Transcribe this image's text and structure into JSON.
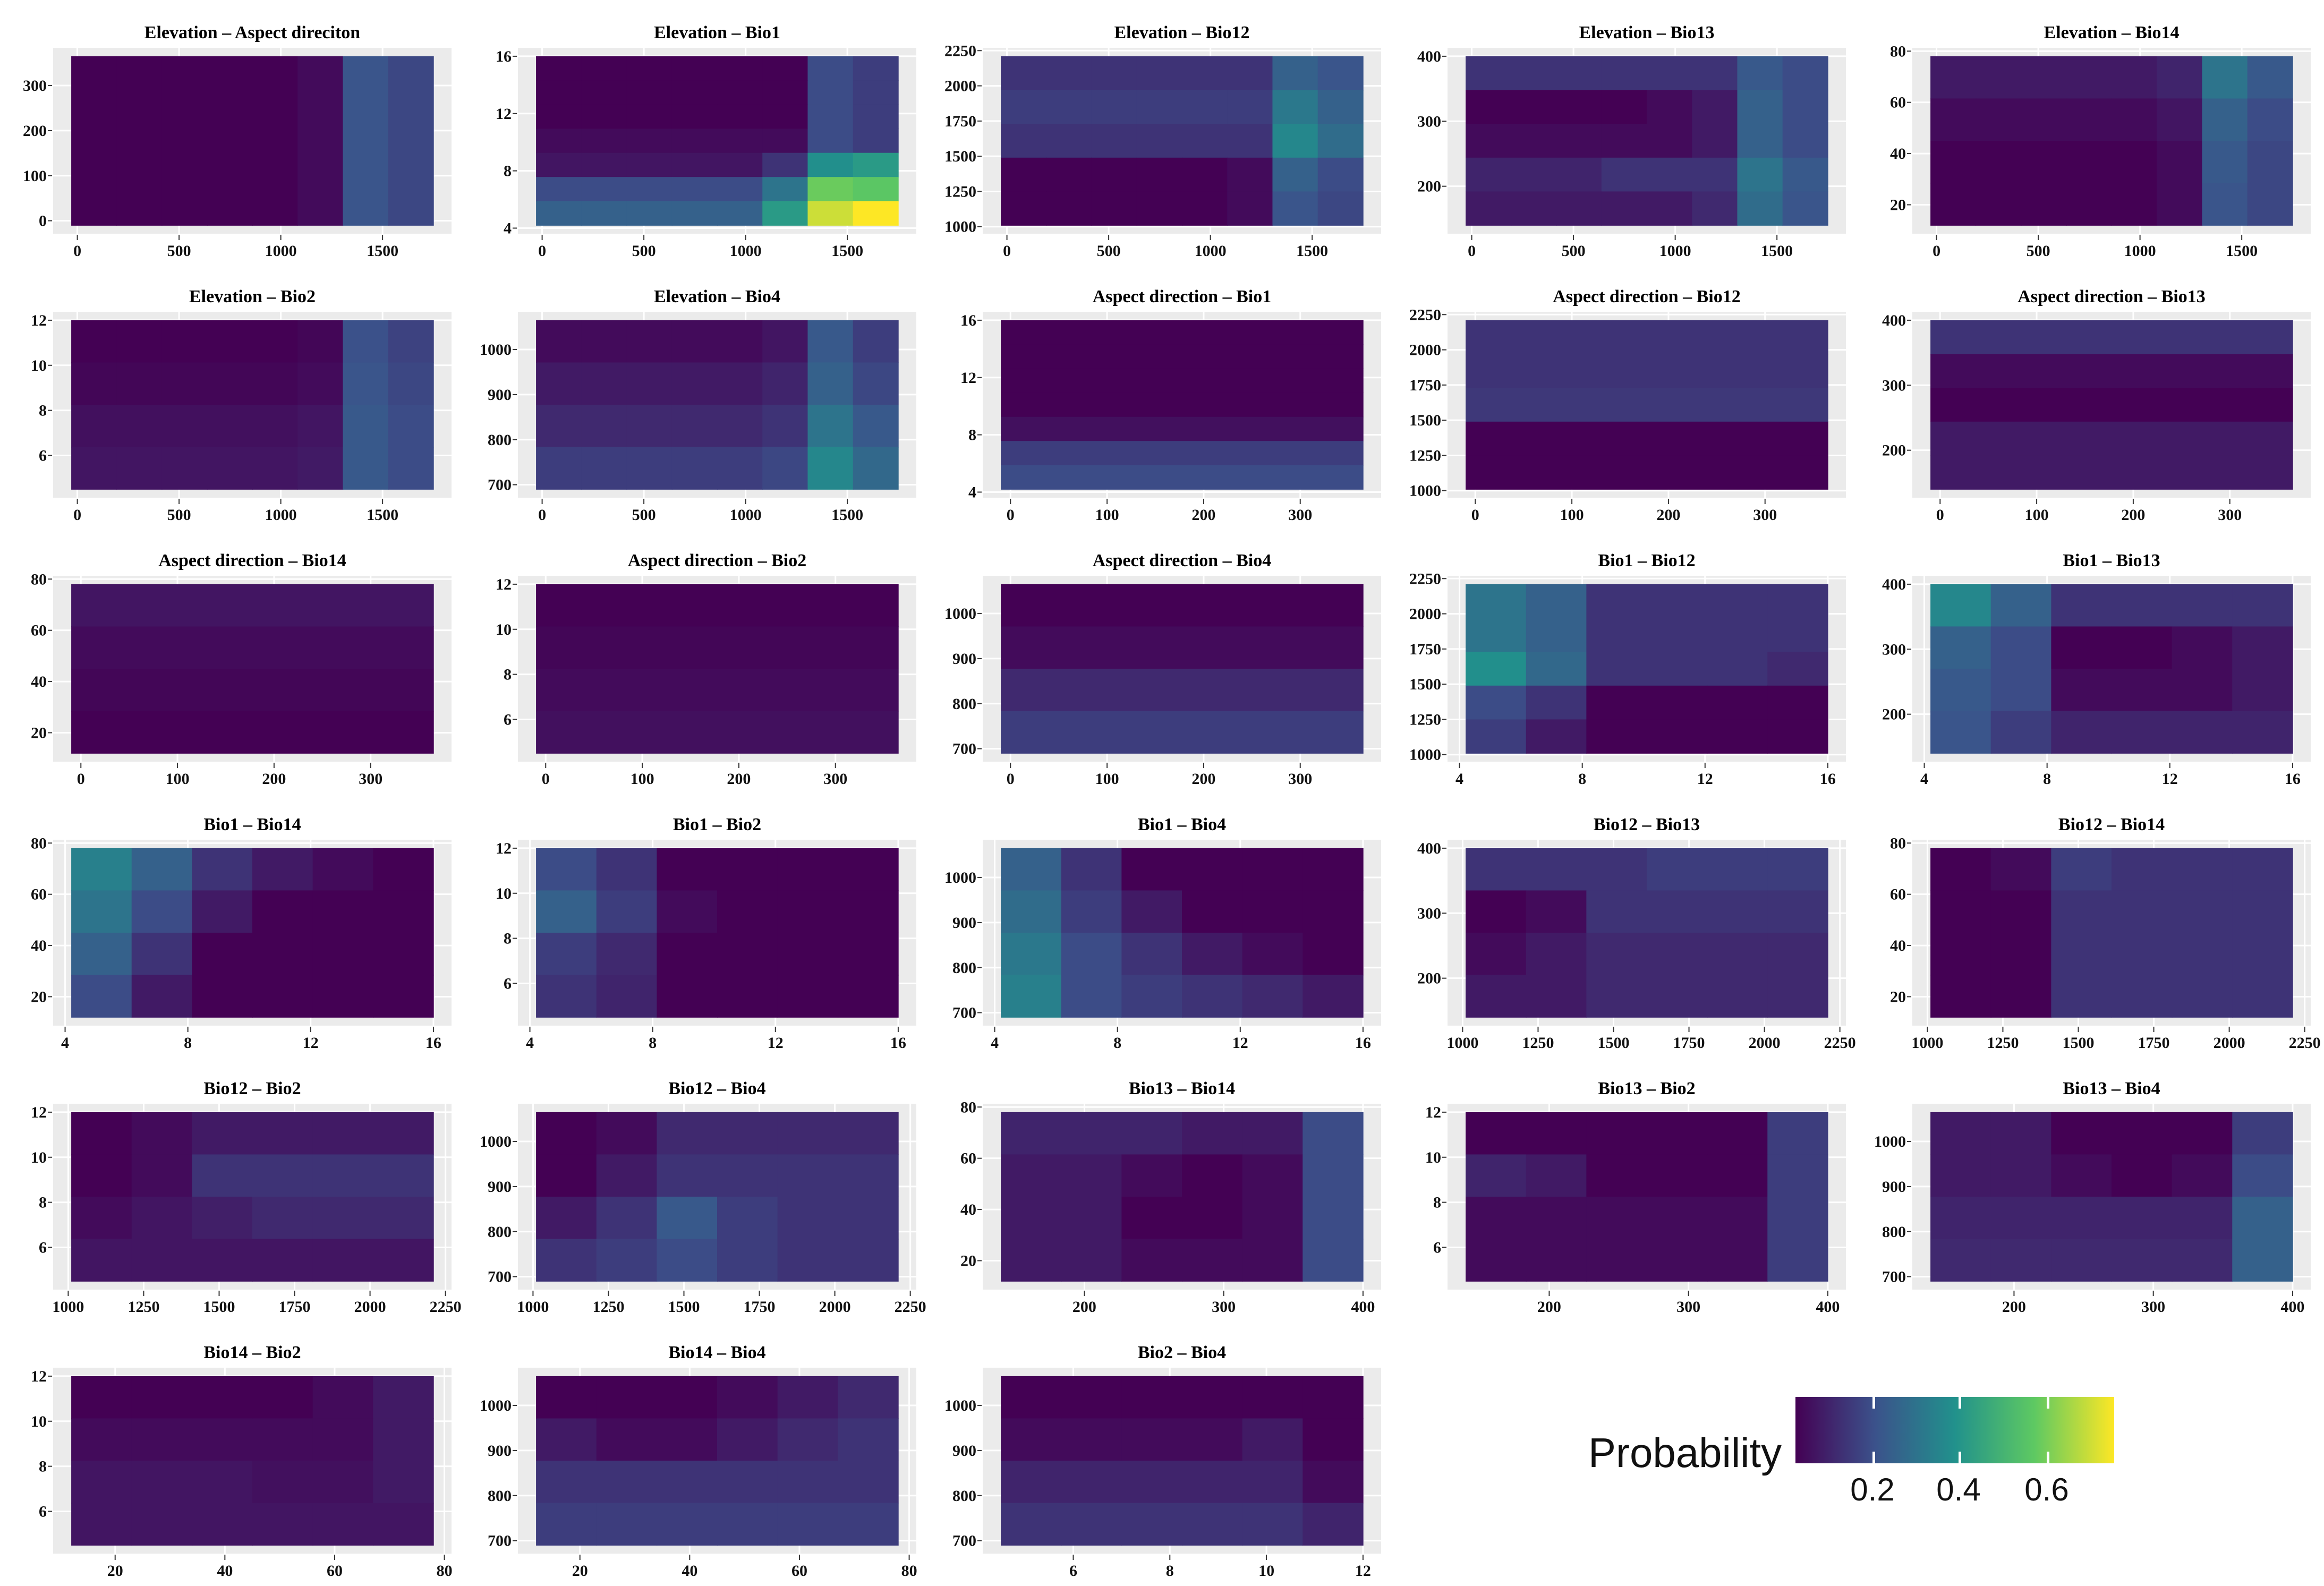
{
  "chart_data": {
    "type": "heatmap",
    "title": "",
    "legend": {
      "title": "Probability",
      "ticks": [
        "0.2",
        "0.4",
        "0.6"
      ],
      "range": [
        0.1,
        0.75
      ],
      "placement": "bottom-right",
      "colormap": [
        "#440154",
        "#3b528b",
        "#21918c",
        "#5ec962",
        "#fde725"
      ]
    },
    "variables": {
      "Elevation": {
        "range": [
          -30,
          1750
        ],
        "ticks": [
          0,
          500,
          1000,
          1500
        ]
      },
      "Aspect": {
        "range": [
          -10,
          365
        ],
        "ticks": [
          0,
          100,
          200,
          300
        ]
      },
      "Bio1": {
        "range": [
          4.2,
          16
        ],
        "ticks": [
          4,
          8,
          12,
          16
        ]
      },
      "Bio12": {
        "range": [
          1010,
          2210
        ],
        "ticks": [
          1000,
          1250,
          1500,
          1750,
          2000,
          2250
        ]
      },
      "Bio13": {
        "range": [
          140,
          400
        ],
        "ticks": [
          200,
          300,
          400
        ]
      },
      "Bio14": {
        "range": [
          12,
          78
        ],
        "ticks": [
          20,
          40,
          60,
          80
        ]
      },
      "Bio2": {
        "range": [
          4.5,
          12
        ],
        "ticks": [
          6,
          8,
          10,
          12
        ]
      },
      "Bio4": {
        "range": [
          690,
          1065
        ],
        "ticks": [
          700,
          800,
          900,
          1000
        ]
      }
    },
    "panels": [
      {
        "title": "Elevation – Aspect direciton",
        "x": "Elevation",
        "y": "Aspect",
        "z": [
          [
            0.1,
            0.1,
            0.1,
            0.1,
            0.1,
            0.12,
            0.27,
            0.24
          ]
        ]
      },
      {
        "title": "Elevation – Bio1",
        "x": "Elevation",
        "y": "Bio1",
        "z": [
          [
            0.1,
            0.1,
            0.1,
            0.1,
            0.1,
            0.1,
            0.25,
            0.22
          ],
          [
            0.1,
            0.1,
            0.1,
            0.1,
            0.1,
            0.1,
            0.25,
            0.22
          ],
          [
            0.1,
            0.1,
            0.1,
            0.1,
            0.1,
            0.1,
            0.25,
            0.22
          ],
          [
            0.12,
            0.12,
            0.12,
            0.12,
            0.12,
            0.12,
            0.25,
            0.22
          ],
          [
            0.14,
            0.14,
            0.14,
            0.14,
            0.14,
            0.2,
            0.42,
            0.45
          ],
          [
            0.25,
            0.25,
            0.25,
            0.25,
            0.25,
            0.35,
            0.6,
            0.58
          ],
          [
            0.3,
            0.3,
            0.3,
            0.3,
            0.3,
            0.45,
            0.7,
            0.75
          ]
        ]
      },
      {
        "title": "Elevation – Bio12",
        "x": "Elevation",
        "y": "Bio12",
        "z": [
          [
            0.2,
            0.2,
            0.2,
            0.2,
            0.2,
            0.2,
            0.3,
            0.27
          ],
          [
            0.22,
            0.22,
            0.22,
            0.22,
            0.22,
            0.22,
            0.36,
            0.3
          ],
          [
            0.2,
            0.2,
            0.2,
            0.2,
            0.2,
            0.2,
            0.4,
            0.33
          ],
          [
            0.1,
            0.1,
            0.1,
            0.1,
            0.1,
            0.12,
            0.3,
            0.25
          ],
          [
            0.1,
            0.1,
            0.1,
            0.1,
            0.1,
            0.12,
            0.27,
            0.24
          ]
        ]
      },
      {
        "title": "Elevation – Bio13",
        "x": "Elevation",
        "y": "Bio13",
        "z": [
          [
            0.2,
            0.2,
            0.2,
            0.2,
            0.2,
            0.2,
            0.28,
            0.25
          ],
          [
            0.1,
            0.1,
            0.1,
            0.1,
            0.12,
            0.15,
            0.3,
            0.25
          ],
          [
            0.12,
            0.12,
            0.12,
            0.12,
            0.12,
            0.15,
            0.3,
            0.25
          ],
          [
            0.17,
            0.17,
            0.17,
            0.2,
            0.2,
            0.2,
            0.35,
            0.28
          ],
          [
            0.15,
            0.15,
            0.15,
            0.15,
            0.15,
            0.18,
            0.33,
            0.27
          ]
        ]
      },
      {
        "title": "Elevation – Bio14",
        "x": "Elevation",
        "y": "Bio14",
        "z": [
          [
            0.15,
            0.15,
            0.15,
            0.15,
            0.15,
            0.17,
            0.35,
            0.28
          ],
          [
            0.12,
            0.12,
            0.12,
            0.12,
            0.12,
            0.14,
            0.3,
            0.25
          ],
          [
            0.1,
            0.1,
            0.1,
            0.1,
            0.1,
            0.12,
            0.28,
            0.24
          ],
          [
            0.1,
            0.1,
            0.1,
            0.1,
            0.1,
            0.12,
            0.27,
            0.24
          ]
        ]
      },
      {
        "title": "Elevation – Bio2",
        "x": "Elevation",
        "y": "Bio2",
        "z": [
          [
            0.1,
            0.1,
            0.1,
            0.1,
            0.1,
            0.11,
            0.26,
            0.23
          ],
          [
            0.11,
            0.11,
            0.11,
            0.11,
            0.11,
            0.12,
            0.27,
            0.24
          ],
          [
            0.13,
            0.13,
            0.13,
            0.13,
            0.13,
            0.14,
            0.28,
            0.25
          ],
          [
            0.14,
            0.14,
            0.14,
            0.14,
            0.14,
            0.15,
            0.28,
            0.25
          ]
        ]
      },
      {
        "title": "Elevation – Bio4",
        "x": "Elevation",
        "y": "Bio4",
        "z": [
          [
            0.12,
            0.12,
            0.12,
            0.12,
            0.12,
            0.14,
            0.28,
            0.22
          ],
          [
            0.15,
            0.15,
            0.15,
            0.15,
            0.15,
            0.17,
            0.3,
            0.24
          ],
          [
            0.18,
            0.18,
            0.18,
            0.18,
            0.18,
            0.2,
            0.35,
            0.28
          ],
          [
            0.22,
            0.22,
            0.22,
            0.22,
            0.22,
            0.24,
            0.4,
            0.32
          ]
        ]
      },
      {
        "title": "Aspect direction – Bio1",
        "x": "Aspect",
        "y": "Bio1",
        "z": [
          [
            0.1
          ],
          [
            0.1
          ],
          [
            0.1
          ],
          [
            0.1
          ],
          [
            0.13
          ],
          [
            0.22
          ],
          [
            0.25
          ]
        ]
      },
      {
        "title": "Aspect direction – Bio12",
        "x": "Aspect",
        "y": "Bio12",
        "z": [
          [
            0.2
          ],
          [
            0.2
          ],
          [
            0.21
          ],
          [
            0.1
          ],
          [
            0.1
          ]
        ]
      },
      {
        "title": "Aspect direction – Bio13",
        "x": "Aspect",
        "y": "Bio13",
        "z": [
          [
            0.2
          ],
          [
            0.12
          ],
          [
            0.1
          ],
          [
            0.15
          ],
          [
            0.15
          ]
        ]
      },
      {
        "title": "Aspect direction – Bio14",
        "x": "Aspect",
        "y": "Bio14",
        "z": [
          [
            0.14
          ],
          [
            0.12
          ],
          [
            0.11
          ],
          [
            0.1
          ]
        ]
      },
      {
        "title": "Aspect direction – Bio2",
        "x": "Aspect",
        "y": "Bio2",
        "z": [
          [
            0.1
          ],
          [
            0.11
          ],
          [
            0.12
          ],
          [
            0.13
          ]
        ]
      },
      {
        "title": "Aspect direction – Bio4",
        "x": "Aspect",
        "y": "Bio4",
        "z": [
          [
            0.1
          ],
          [
            0.12
          ],
          [
            0.18
          ],
          [
            0.22
          ]
        ]
      },
      {
        "title": "Bio1 – Bio12",
        "x": "Bio1",
        "y": "Bio12",
        "z": [
          [
            0.35,
            0.3,
            0.2,
            0.2,
            0.2,
            0.2
          ],
          [
            0.35,
            0.3,
            0.2,
            0.2,
            0.2,
            0.2
          ],
          [
            0.42,
            0.32,
            0.2,
            0.2,
            0.2,
            0.18
          ],
          [
            0.25,
            0.2,
            0.1,
            0.1,
            0.1,
            0.1
          ],
          [
            0.22,
            0.15,
            0.1,
            0.1,
            0.1,
            0.1
          ]
        ]
      },
      {
        "title": "Bio1 – Bio13",
        "x": "Bio1",
        "y": "Bio13",
        "z": [
          [
            0.4,
            0.3,
            0.2,
            0.2,
            0.2,
            0.2
          ],
          [
            0.3,
            0.25,
            0.1,
            0.1,
            0.12,
            0.15
          ],
          [
            0.28,
            0.25,
            0.12,
            0.12,
            0.12,
            0.15
          ],
          [
            0.27,
            0.22,
            0.17,
            0.17,
            0.17,
            0.17
          ]
        ]
      },
      {
        "title": "Bio1 – Bio14",
        "x": "Bio1",
        "y": "Bio14",
        "z": [
          [
            0.38,
            0.3,
            0.2,
            0.15,
            0.12,
            0.1
          ],
          [
            0.35,
            0.25,
            0.15,
            0.1,
            0.1,
            0.1
          ],
          [
            0.3,
            0.2,
            0.1,
            0.1,
            0.1,
            0.1
          ],
          [
            0.25,
            0.15,
            0.1,
            0.1,
            0.1,
            0.1
          ]
        ]
      },
      {
        "title": "Bio1 – Bio2",
        "x": "Bio1",
        "y": "Bio2",
        "z": [
          [
            0.25,
            0.2,
            0.1,
            0.1,
            0.1,
            0.1
          ],
          [
            0.3,
            0.22,
            0.12,
            0.1,
            0.1,
            0.1
          ],
          [
            0.22,
            0.18,
            0.1,
            0.1,
            0.1,
            0.1
          ],
          [
            0.2,
            0.17,
            0.1,
            0.1,
            0.1,
            0.1
          ]
        ]
      },
      {
        "title": "Bio1 – Bio4",
        "x": "Bio1",
        "y": "Bio4",
        "z": [
          [
            0.3,
            0.2,
            0.1,
            0.1,
            0.1,
            0.1
          ],
          [
            0.33,
            0.22,
            0.15,
            0.1,
            0.1,
            0.1
          ],
          [
            0.36,
            0.25,
            0.2,
            0.15,
            0.12,
            0.1
          ],
          [
            0.38,
            0.25,
            0.22,
            0.2,
            0.18,
            0.15
          ]
        ]
      },
      {
        "title": "Bio12 – Bio13",
        "x": "Bio12",
        "y": "Bio13",
        "z": [
          [
            0.2,
            0.2,
            0.2,
            0.22,
            0.22,
            0.22
          ],
          [
            0.1,
            0.12,
            0.2,
            0.2,
            0.2,
            0.2
          ],
          [
            0.12,
            0.15,
            0.18,
            0.18,
            0.18,
            0.18
          ],
          [
            0.15,
            0.15,
            0.18,
            0.18,
            0.18,
            0.18
          ]
        ]
      },
      {
        "title": "Bio12 – Bio14",
        "x": "Bio12",
        "y": "Bio14",
        "z": [
          [
            0.1,
            0.12,
            0.22,
            0.2,
            0.2,
            0.2
          ],
          [
            0.1,
            0.1,
            0.2,
            0.2,
            0.2,
            0.2
          ],
          [
            0.1,
            0.1,
            0.2,
            0.2,
            0.2,
            0.2
          ],
          [
            0.1,
            0.1,
            0.2,
            0.2,
            0.2,
            0.2
          ]
        ]
      },
      {
        "title": "Bio12 – Bio2",
        "x": "Bio12",
        "y": "Bio2",
        "z": [
          [
            0.1,
            0.12,
            0.15,
            0.15,
            0.15,
            0.15
          ],
          [
            0.1,
            0.12,
            0.2,
            0.2,
            0.2,
            0.2
          ],
          [
            0.12,
            0.14,
            0.16,
            0.18,
            0.18,
            0.18
          ],
          [
            0.14,
            0.14,
            0.14,
            0.14,
            0.14,
            0.14
          ]
        ]
      },
      {
        "title": "Bio12 – Bio4",
        "x": "Bio12",
        "y": "Bio4",
        "z": [
          [
            0.1,
            0.12,
            0.18,
            0.18,
            0.18,
            0.18
          ],
          [
            0.1,
            0.15,
            0.2,
            0.2,
            0.2,
            0.2
          ],
          [
            0.15,
            0.2,
            0.28,
            0.22,
            0.2,
            0.2
          ],
          [
            0.2,
            0.22,
            0.25,
            0.22,
            0.2,
            0.2
          ]
        ]
      },
      {
        "title": "Bio13 – Bio14",
        "x": "Bio13",
        "y": "Bio14",
        "z": [
          [
            0.17,
            0.17,
            0.17,
            0.15,
            0.15,
            0.25
          ],
          [
            0.15,
            0.15,
            0.12,
            0.1,
            0.12,
            0.25
          ],
          [
            0.15,
            0.15,
            0.1,
            0.1,
            0.12,
            0.25
          ],
          [
            0.15,
            0.15,
            0.12,
            0.12,
            0.12,
            0.25
          ]
        ]
      },
      {
        "title": "Bio13 – Bio2",
        "x": "Bio13",
        "y": "Bio2",
        "z": [
          [
            0.1,
            0.1,
            0.1,
            0.1,
            0.1,
            0.22
          ],
          [
            0.17,
            0.15,
            0.1,
            0.1,
            0.1,
            0.22
          ],
          [
            0.12,
            0.12,
            0.12,
            0.12,
            0.12,
            0.22
          ],
          [
            0.12,
            0.12,
            0.12,
            0.12,
            0.12,
            0.22
          ]
        ]
      },
      {
        "title": "Bio13 – Bio4",
        "x": "Bio13",
        "y": "Bio4",
        "z": [
          [
            0.15,
            0.15,
            0.1,
            0.1,
            0.1,
            0.22
          ],
          [
            0.15,
            0.15,
            0.12,
            0.1,
            0.12,
            0.25
          ],
          [
            0.17,
            0.17,
            0.17,
            0.17,
            0.17,
            0.3
          ],
          [
            0.18,
            0.18,
            0.18,
            0.18,
            0.18,
            0.3
          ]
        ]
      },
      {
        "title": "Bio14 – Bio2",
        "x": "Bio14",
        "y": "Bio2",
        "z": [
          [
            0.1,
            0.1,
            0.1,
            0.1,
            0.12,
            0.15
          ],
          [
            0.12,
            0.12,
            0.12,
            0.12,
            0.12,
            0.15
          ],
          [
            0.14,
            0.14,
            0.14,
            0.13,
            0.13,
            0.15
          ],
          [
            0.14,
            0.14,
            0.14,
            0.14,
            0.14,
            0.14
          ]
        ]
      },
      {
        "title": "Bio14 – Bio4",
        "x": "Bio14",
        "y": "Bio4",
        "z": [
          [
            0.1,
            0.1,
            0.1,
            0.12,
            0.15,
            0.18
          ],
          [
            0.15,
            0.12,
            0.12,
            0.15,
            0.18,
            0.2
          ],
          [
            0.2,
            0.2,
            0.2,
            0.2,
            0.2,
            0.2
          ],
          [
            0.22,
            0.22,
            0.22,
            0.22,
            0.22,
            0.22
          ]
        ]
      },
      {
        "title": "Bio2 – Bio4",
        "x": "Bio2",
        "y": "Bio4",
        "z": [
          [
            0.1,
            0.1,
            0.1,
            0.1,
            0.1,
            0.1
          ],
          [
            0.12,
            0.12,
            0.12,
            0.12,
            0.15,
            0.1
          ],
          [
            0.17,
            0.17,
            0.17,
            0.17,
            0.17,
            0.12
          ],
          [
            0.2,
            0.2,
            0.2,
            0.2,
            0.2,
            0.17
          ]
        ]
      }
    ]
  }
}
